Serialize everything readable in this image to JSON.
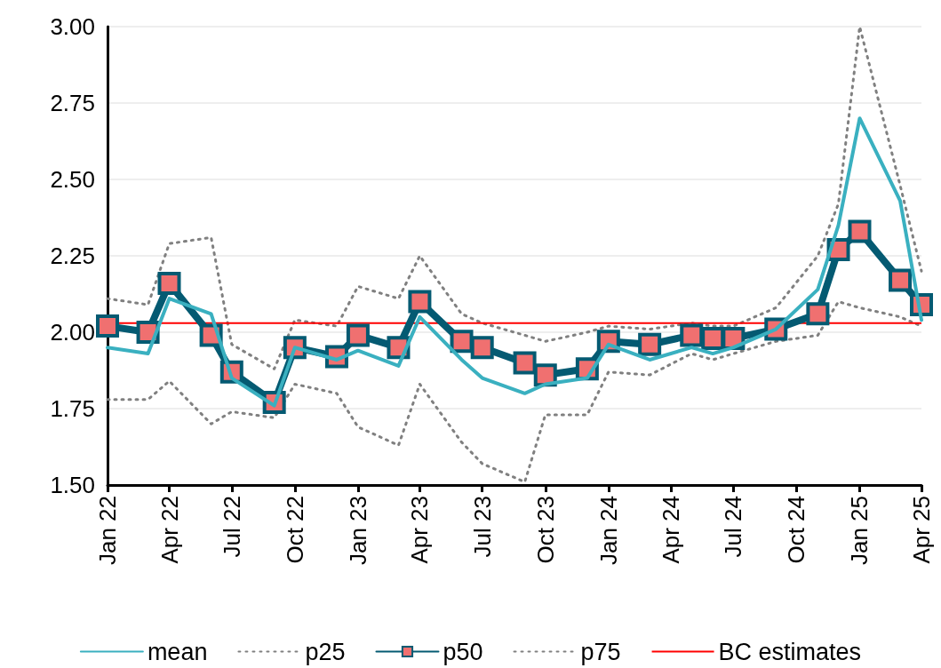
{
  "chart_data": {
    "type": "line",
    "x": [
      "2022-01",
      "2022-03",
      "2022-04",
      "2022-06",
      "2022-07",
      "2022-09",
      "2022-10",
      "2022-12",
      "2023-01",
      "2023-03",
      "2023-04",
      "2023-06",
      "2023-07",
      "2023-09",
      "2023-10",
      "2023-12",
      "2024-01",
      "2024-03",
      "2024-05",
      "2024-06",
      "2024-07",
      "2024-09",
      "2024-11",
      "2024-12",
      "2025-01",
      "2025-03",
      "2025-04"
    ],
    "series": [
      {
        "name": "mean",
        "color": "#3ab0c0",
        "line_style": "solid",
        "marker": "none",
        "values": [
          1.95,
          1.93,
          2.11,
          2.06,
          1.85,
          1.76,
          1.95,
          1.91,
          1.94,
          1.89,
          2.05,
          1.91,
          1.85,
          1.8,
          1.83,
          1.85,
          1.96,
          1.91,
          1.95,
          1.93,
          1.95,
          2.01,
          2.14,
          2.35,
          2.7,
          2.43,
          2.04
        ]
      },
      {
        "name": "p25",
        "color": "#808080",
        "line_style": "dotted",
        "marker": "none",
        "values": [
          1.78,
          1.78,
          1.84,
          1.7,
          1.74,
          1.72,
          1.83,
          1.8,
          1.69,
          1.63,
          1.83,
          1.64,
          1.57,
          1.51,
          1.73,
          1.73,
          1.87,
          1.86,
          1.93,
          1.91,
          1.93,
          1.97,
          1.99,
          2.1,
          2.08,
          2.05,
          2.02
        ]
      },
      {
        "name": "p50",
        "color": "#045a72",
        "line_style": "solid",
        "marker": "square",
        "values": [
          2.02,
          2.0,
          2.16,
          1.99,
          1.87,
          1.77,
          1.95,
          1.92,
          1.99,
          1.95,
          2.1,
          1.97,
          1.95,
          1.9,
          1.86,
          1.88,
          1.97,
          1.96,
          1.99,
          1.98,
          1.98,
          2.01,
          2.06,
          2.27,
          2.33,
          2.17,
          2.09
        ]
      },
      {
        "name": "p75",
        "color": "#808080",
        "line_style": "dotted",
        "marker": "none",
        "values": [
          2.11,
          2.09,
          2.29,
          2.31,
          1.96,
          1.88,
          2.04,
          2.02,
          2.15,
          2.11,
          2.25,
          2.06,
          2.03,
          1.99,
          1.97,
          2.0,
          2.02,
          2.01,
          2.03,
          2.02,
          2.02,
          2.08,
          2.25,
          2.42,
          3.0,
          2.48,
          2.2
        ]
      }
    ],
    "ref_lines": [
      {
        "axis": "y",
        "value": 2.03,
        "label": "BC estimates",
        "color": "#ff0000",
        "line_style": "solid"
      }
    ],
    "xlim": [
      "2022-01",
      "2025-04"
    ],
    "xticks": [
      {
        "value": "2022-01",
        "label": "Jan 22"
      },
      {
        "value": "2022-04",
        "label": "Apr 22"
      },
      {
        "value": "2022-07",
        "label": "Jul 22"
      },
      {
        "value": "2022-10",
        "label": "Oct 22"
      },
      {
        "value": "2023-01",
        "label": "Jan 23"
      },
      {
        "value": "2023-04",
        "label": "Apr 23"
      },
      {
        "value": "2023-07",
        "label": "Jul 23"
      },
      {
        "value": "2023-10",
        "label": "Oct 23"
      },
      {
        "value": "2024-01",
        "label": "Jan 24"
      },
      {
        "value": "2024-04",
        "label": "Apr 24"
      },
      {
        "value": "2024-07",
        "label": "Jul 24"
      },
      {
        "value": "2024-10",
        "label": "Oct 24"
      },
      {
        "value": "2025-01",
        "label": "Jan 25"
      },
      {
        "value": "2025-04",
        "label": "Apr 25"
      }
    ],
    "ylim": [
      1.5,
      3.0
    ],
    "yticks": [
      {
        "value": 1.5,
        "label": "1.50"
      },
      {
        "value": 1.75,
        "label": "1.75"
      },
      {
        "value": 2.0,
        "label": "2.00"
      },
      {
        "value": 2.25,
        "label": "2.25"
      },
      {
        "value": 2.5,
        "label": "2.50"
      },
      {
        "value": 2.75,
        "label": "2.75"
      },
      {
        "value": 3.0,
        "label": "3.00"
      }
    ],
    "grid": "y",
    "legend": "bottom"
  }
}
